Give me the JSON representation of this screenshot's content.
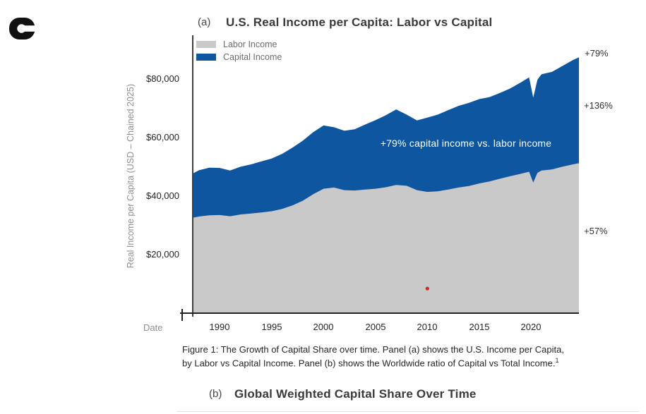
{
  "logo": {
    "name": "c-logo",
    "color": "#111111"
  },
  "panel_a": {
    "label": "(a)",
    "title": "U.S. Real Income per Capita: Labor vs Capital",
    "y_axis": {
      "title": "Real Income per Capita (USD – Chained 2025)",
      "ticks": [
        "$80,000",
        "$60,000",
        "$40,000",
        "$20,000"
      ]
    },
    "x_axis": {
      "title": "Date"
    }
  },
  "caption": {
    "line1": "Figure 1: The Growth of Capital Share over time. Panel (a) shows the U.S. Income per Capita,",
    "line2": "by Labor vs Capital Income. Panel (b) shows the Worldwide ratio of Capital vs Total Income.",
    "footnote_mark": "1"
  },
  "panel_b": {
    "label": "(b)",
    "title": "Global Weighted Capital Share Over Time"
  },
  "chart_data": {
    "type": "area",
    "stacked": true,
    "title": "U.S. Real Income per Capita: Labor vs Capital",
    "xlabel": "Date",
    "ylabel": "Real Income per Capita (USD – Chained 2025)",
    "xlim": [
      1987.4,
      2024.6
    ],
    "ylim": [
      0,
      93700
    ],
    "x_ticks": [
      1990,
      1995,
      2000,
      2005,
      2010,
      2015,
      2020
    ],
    "y_ticks": [
      20000,
      40000,
      60000,
      80000
    ],
    "grid": false,
    "legend_position": "top-left-inside",
    "x": [
      1987.4,
      1988,
      1989,
      1990,
      1991,
      1992,
      1993,
      1994,
      1995,
      1996,
      1997,
      1998,
      1999,
      2000,
      2001,
      2002,
      2003,
      2004,
      2005,
      2006,
      2007,
      2008,
      2009,
      2010,
      2011,
      2012,
      2013,
      2014,
      2015,
      2016,
      2017,
      2018,
      2019,
      2019.8,
      2020.2,
      2020.6,
      2021,
      2022,
      2023,
      2024,
      2024.6
    ],
    "series": [
      {
        "name": "Labor Income",
        "color": "#c9c9c9",
        "values": [
          32600,
          33000,
          33400,
          33500,
          33100,
          33700,
          34000,
          34400,
          34800,
          35600,
          36800,
          38400,
          40600,
          42500,
          42900,
          42000,
          41900,
          42200,
          42500,
          43000,
          43800,
          43500,
          42000,
          41400,
          41600,
          42200,
          42900,
          43400,
          44300,
          45000,
          45900,
          46800,
          47600,
          48300,
          44600,
          47900,
          48700,
          49100,
          50000,
          50800,
          51200
        ]
      },
      {
        "name": "Capital Income",
        "color": "#0e56a0",
        "values": [
          15100,
          15800,
          16300,
          16100,
          15600,
          16300,
          16800,
          17400,
          18000,
          18800,
          19700,
          20500,
          21200,
          21600,
          20600,
          20300,
          20900,
          22200,
          23400,
          24600,
          25800,
          24300,
          23800,
          25400,
          26200,
          27100,
          27900,
          28400,
          28800,
          28800,
          29300,
          30000,
          31200,
          32200,
          29000,
          31800,
          32900,
          33300,
          34400,
          35600,
          36200
        ]
      }
    ],
    "annotations": [
      {
        "text": "+79% capital income vs. labor income",
        "x": 2013.5,
        "y": 58000,
        "color": "#ffffff",
        "position": "inside-capital-band"
      },
      {
        "text": "+79%",
        "y": 90000,
        "position": "right-of-plot",
        "refers_to": "total income growth"
      },
      {
        "text": "+136%",
        "y": 71500,
        "position": "right-of-plot",
        "refers_to": "capital income growth"
      },
      {
        "text": "+57%",
        "y": 27500,
        "position": "right-of-plot",
        "refers_to": "labor income growth"
      }
    ],
    "point_marker": {
      "x": 2010,
      "y": 8400,
      "color": "#dd2222"
    }
  }
}
